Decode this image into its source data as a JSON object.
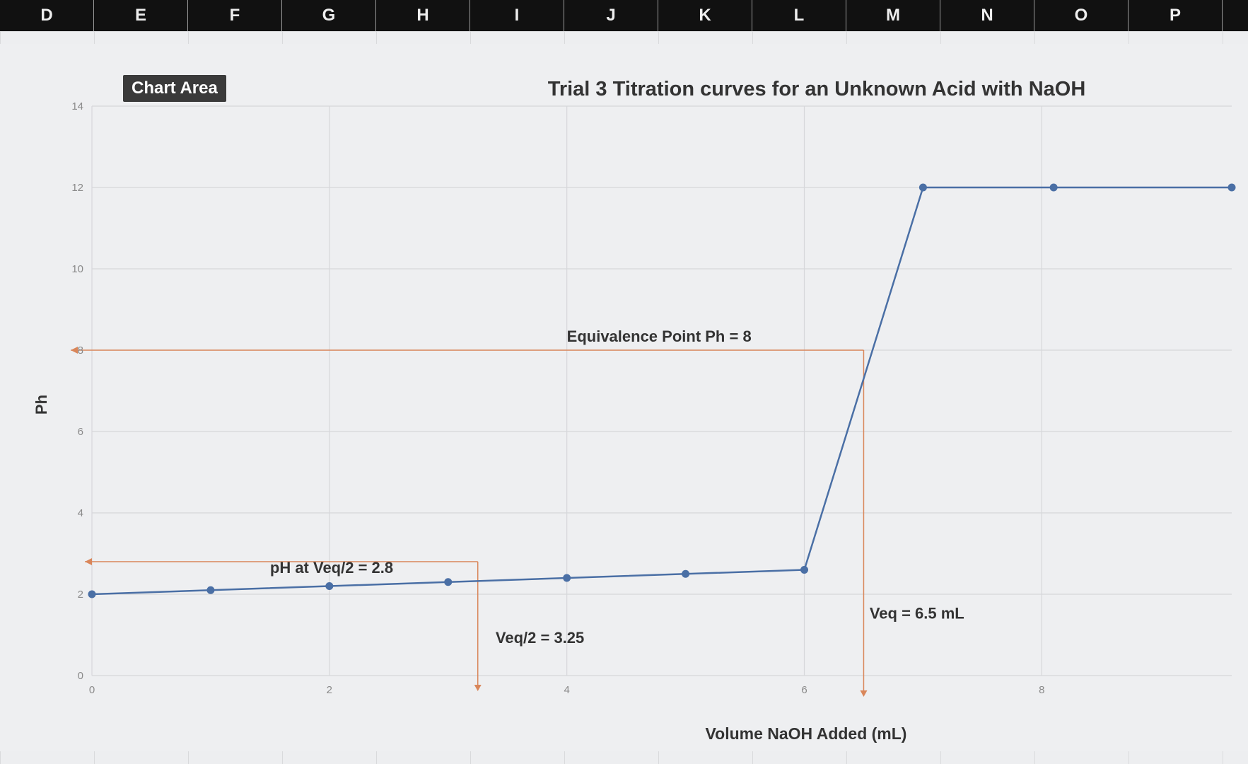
{
  "column_headers": [
    "D",
    "E",
    "F",
    "G",
    "H",
    "I",
    "J",
    "K",
    "L",
    "M",
    "N",
    "O",
    "P"
  ],
  "chart_area_tooltip": "Chart Area",
  "chart_data": {
    "type": "line",
    "title": "Trial 3 Titration curves for an Unknown Acid with NaOH",
    "xlabel": "Volume NaOH Added (mL)",
    "ylabel": "Ph",
    "xlim": [
      0,
      9.6
    ],
    "ylim": [
      0,
      14
    ],
    "x_ticks": [
      0,
      2,
      4,
      6,
      8
    ],
    "y_ticks": [
      0,
      2,
      4,
      6,
      8,
      10,
      12,
      14
    ],
    "grid": true,
    "series": [
      {
        "color": "#4a6fa5",
        "x": [
          0,
          1,
          2,
          3,
          4,
          5,
          6,
          7,
          8.1,
          9.6
        ],
        "y": [
          2.0,
          2.1,
          2.2,
          2.3,
          2.4,
          2.5,
          2.6,
          12.0,
          12.0,
          12.0
        ]
      }
    ],
    "reference_lines": [
      {
        "label": "Equivalence Point Ph = 8",
        "x": 6.5,
        "y": 8,
        "color": "#d9865a"
      },
      {
        "label": "pH at Veq/2 = 2.8",
        "y": 2.8,
        "color": "#d9865a"
      },
      {
        "label": "Veq/2 = 3.25",
        "x": 3.25,
        "color": "#d9865a"
      },
      {
        "label": "Veq = 6.5 mL",
        "x": 6.5,
        "color": "#d9865a"
      }
    ]
  }
}
